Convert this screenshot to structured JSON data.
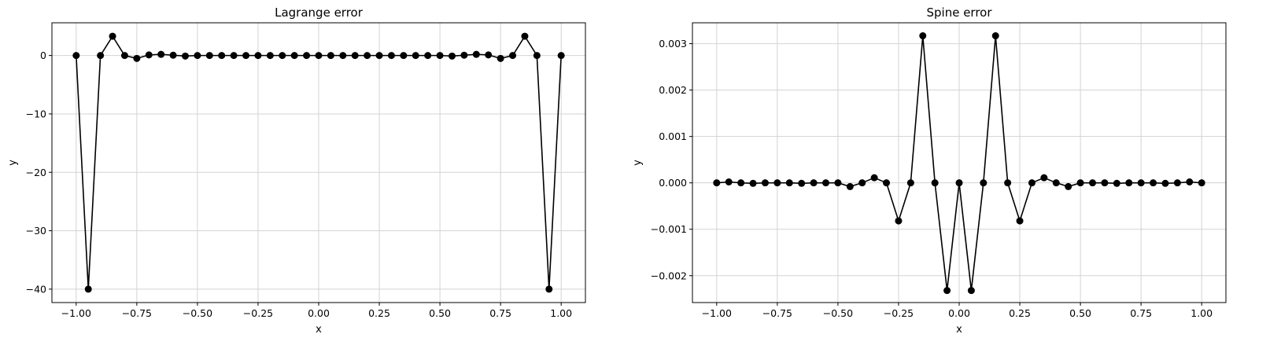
{
  "chart_data": [
    {
      "type": "line",
      "title": "Lagrange error",
      "xlabel": "x",
      "ylabel": "y",
      "xlim": [
        -1.1,
        1.1
      ],
      "ylim": [
        -42.3,
        5.6
      ],
      "xticks": [
        -1.0,
        -0.75,
        -0.5,
        -0.25,
        0.0,
        0.25,
        0.5,
        0.75,
        1.0
      ],
      "xtick_labels": [
        "−1.00",
        "−0.75",
        "−0.50",
        "−0.25",
        "0.00",
        "0.25",
        "0.50",
        "0.75",
        "1.00"
      ],
      "yticks": [
        -40,
        -30,
        -20,
        -10,
        0
      ],
      "ytick_labels": [
        "−40",
        "−30",
        "−20",
        "−10",
        "0"
      ],
      "grid": true,
      "color": "#000000",
      "x": [
        -1.0,
        -0.95,
        -0.9,
        -0.85,
        -0.8,
        -0.75,
        -0.7,
        -0.65,
        -0.6,
        -0.55,
        -0.5,
        -0.45,
        -0.4,
        -0.35,
        -0.3,
        -0.25,
        -0.2,
        -0.15,
        -0.1,
        -0.05,
        0.0,
        0.05,
        0.1,
        0.15,
        0.2,
        0.25,
        0.3,
        0.35,
        0.4,
        0.45,
        0.5,
        0.55,
        0.6,
        0.65,
        0.7,
        0.75,
        0.8,
        0.85,
        0.9,
        0.95,
        1.0
      ],
      "y": [
        0,
        -40,
        0,
        3.3,
        0,
        -0.5,
        0.1,
        0.2,
        0.05,
        -0.1,
        0,
        0,
        0,
        0,
        0,
        0,
        0,
        0,
        0,
        0,
        0,
        0,
        0,
        0,
        0,
        0,
        0,
        0,
        0,
        0,
        0,
        -0.1,
        0.05,
        0.2,
        0.1,
        -0.5,
        0,
        3.3,
        0,
        -40,
        0
      ]
    },
    {
      "type": "line",
      "title": "Spine error",
      "xlabel": "x",
      "ylabel": "y",
      "xlim": [
        -1.1,
        1.1
      ],
      "ylim": [
        -0.00258,
        0.00345
      ],
      "xticks": [
        -1.0,
        -0.75,
        -0.5,
        -0.25,
        0.0,
        0.25,
        0.5,
        0.75,
        1.0
      ],
      "xtick_labels": [
        "−1.00",
        "−0.75",
        "−0.50",
        "−0.25",
        "0.00",
        "0.25",
        "0.50",
        "0.75",
        "1.00"
      ],
      "yticks": [
        -0.002,
        -0.001,
        0.0,
        0.001,
        0.002,
        0.003
      ],
      "ytick_labels": [
        "−0.002",
        "−0.001",
        "0.000",
        "0.001",
        "0.002",
        "0.003"
      ],
      "grid": true,
      "color": "#000000",
      "x": [
        -1.0,
        -0.95,
        -0.9,
        -0.85,
        -0.8,
        -0.75,
        -0.7,
        -0.65,
        -0.6,
        -0.55,
        -0.5,
        -0.45,
        -0.4,
        -0.35,
        -0.3,
        -0.25,
        -0.2,
        -0.15,
        -0.1,
        -0.05,
        0.0,
        0.05,
        0.1,
        0.15,
        0.2,
        0.25,
        0.3,
        0.35,
        0.4,
        0.45,
        0.5,
        0.55,
        0.6,
        0.65,
        0.7,
        0.75,
        0.8,
        0.85,
        0.9,
        0.95,
        1.0
      ],
      "y": [
        0,
        2e-05,
        0,
        -1e-05,
        0,
        0,
        0,
        -1e-05,
        0,
        0,
        0,
        -8e-05,
        0,
        0.00011,
        0,
        -0.00082,
        0,
        0.00317,
        0,
        -0.00232,
        0,
        -0.00232,
        0,
        0.00317,
        0,
        -0.00082,
        0,
        0.00011,
        0,
        -8e-05,
        0,
        0,
        0,
        -1e-05,
        0,
        0,
        0,
        -1e-05,
        0,
        2e-05,
        0
      ]
    }
  ]
}
